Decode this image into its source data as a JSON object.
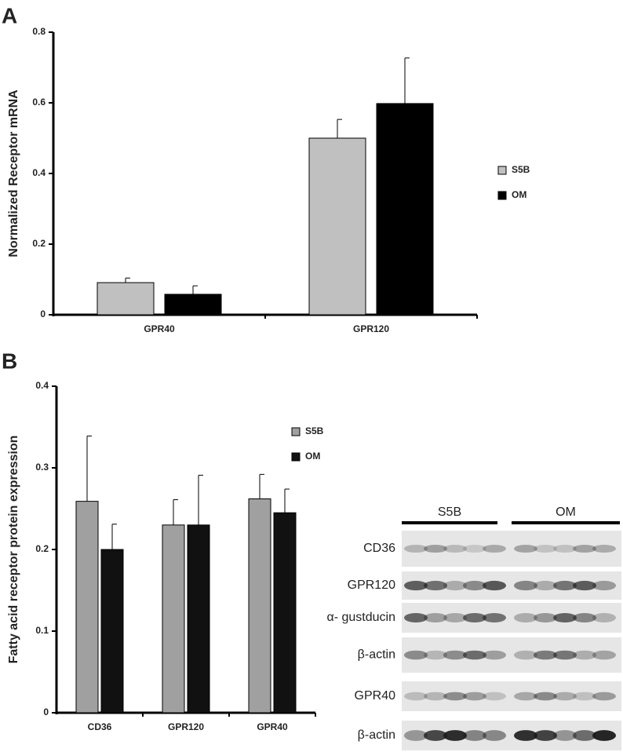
{
  "panels": [
    "A",
    "B"
  ],
  "chart_data": [
    {
      "type": "bar",
      "ylabel": "Normalized Receptor mRNA",
      "categories": [
        "GPR40",
        "GPR120"
      ],
      "series": [
        {
          "name": "S5B",
          "color": "#c0c0c0",
          "values": [
            0.091,
            0.5
          ],
          "errors": [
            0.013,
            0.053
          ]
        },
        {
          "name": "OM",
          "color": "#000000",
          "values": [
            0.058,
            0.598
          ],
          "errors": [
            0.024,
            0.129
          ]
        }
      ],
      "ylim": [
        0,
        0.8
      ],
      "yticks": [
        0,
        0.2,
        0.4,
        0.6,
        0.8
      ]
    },
    {
      "type": "bar",
      "ylabel": "Fatty acid receptor protein expression",
      "categories": [
        "CD36",
        "GPR120",
        "GPR40"
      ],
      "series": [
        {
          "name": "S5B",
          "color": "#a0a0a0",
          "values": [
            0.259,
            0.23,
            0.262
          ],
          "errors": [
            0.08,
            0.031,
            0.03
          ]
        },
        {
          "name": "OM",
          "color": "#111111",
          "values": [
            0.2,
            0.23,
            0.245
          ],
          "errors": [
            0.031,
            0.061,
            0.029
          ]
        }
      ],
      "ylim": [
        0,
        0.4
      ],
      "yticks": [
        0,
        0.1,
        0.2,
        0.3,
        0.4
      ]
    }
  ],
  "blot": {
    "groups": [
      "S5B",
      "OM"
    ],
    "rows": [
      "CD36",
      "GPR120",
      "α- gustducin",
      "β-actin",
      "GPR40",
      "β-actin"
    ]
  }
}
